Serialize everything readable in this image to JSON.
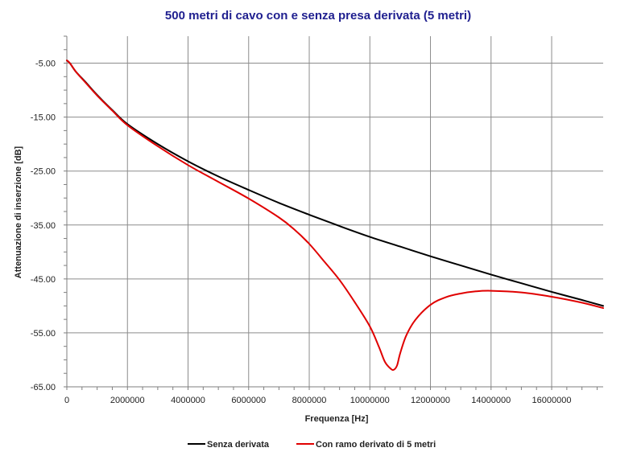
{
  "chart_data": {
    "type": "line",
    "title": "500 metri di cavo con e senza presa derivata (5 metri)",
    "xlabel": "Frequenza [Hz]",
    "ylabel": "Attenuazione di inserzione [dB]",
    "xlim": [
      0,
      17700000
    ],
    "ylim": [
      -65,
      0
    ],
    "x_ticks": [
      0,
      2000000,
      4000000,
      6000000,
      8000000,
      10000000,
      12000000,
      14000000,
      16000000
    ],
    "x_tick_labels": [
      "0",
      "2000000",
      "4000000",
      "6000000",
      "8000000",
      "10000000",
      "12000000",
      "14000000",
      "16000000"
    ],
    "y_ticks": [
      -5,
      -15,
      -25,
      -35,
      -45,
      -55,
      -65
    ],
    "y_tick_labels": [
      "-5.00",
      "-15.00",
      "-25.00",
      "-35.00",
      "-45.00",
      "-55.00",
      "-65.00"
    ],
    "grid": true,
    "legend_position": "bottom",
    "series": [
      {
        "name": "Senza derivata",
        "color": "#000000",
        "x": [
          0,
          100000,
          300000,
          600000,
          1000000,
          1500000,
          2000000,
          3000000,
          4000000,
          5000000,
          6000000,
          7000000,
          8000000,
          9000000,
          10000000,
          11000000,
          12000000,
          13000000,
          14000000,
          15000000,
          16000000,
          17000000,
          17700000
        ],
        "y": [
          -4.5,
          -5.0,
          -6.6,
          -8.4,
          -10.9,
          -13.7,
          -16.3,
          -20.0,
          -23.2,
          -26.0,
          -28.5,
          -30.9,
          -33.1,
          -35.2,
          -37.2,
          -39.0,
          -40.8,
          -42.5,
          -44.2,
          -45.8,
          -47.4,
          -48.9,
          -50.0
        ]
      },
      {
        "name": "Con ramo derivato di 5 metri",
        "color": "#e00000",
        "x": [
          0,
          100000,
          300000,
          600000,
          1000000,
          1500000,
          2000000,
          3000000,
          4000000,
          5000000,
          6000000,
          7000000,
          7500000,
          8000000,
          8500000,
          9000000,
          9500000,
          10000000,
          10300000,
          10500000,
          10700000,
          10800000,
          10900000,
          11000000,
          11200000,
          11500000,
          12000000,
          12500000,
          13000000,
          13500000,
          14000000,
          15000000,
          16000000,
          17000000,
          17700000
        ],
        "y": [
          -4.5,
          -5.0,
          -6.6,
          -8.5,
          -11.0,
          -13.8,
          -16.5,
          -20.4,
          -23.9,
          -27.0,
          -30.1,
          -33.6,
          -35.8,
          -38.5,
          -41.8,
          -45.2,
          -49.3,
          -53.8,
          -57.6,
          -60.4,
          -61.7,
          -61.8,
          -61.0,
          -58.8,
          -55.5,
          -52.6,
          -49.8,
          -48.4,
          -47.7,
          -47.3,
          -47.2,
          -47.5,
          -48.3,
          -49.4,
          -50.4
        ]
      }
    ]
  }
}
